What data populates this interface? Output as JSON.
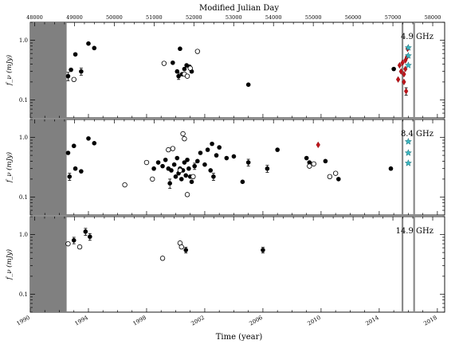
{
  "chart_data": {
    "type": "scatter",
    "top_axis": {
      "title": "Modified Julian Day",
      "range": [
        47890,
        58300
      ],
      "ticks": [
        "48000",
        "49000",
        "50000",
        "51000",
        "52000",
        "53000",
        "54000",
        "55000",
        "56000",
        "57000",
        "58000"
      ]
    },
    "bottom_axis": {
      "title": "Time (year)",
      "range": [
        1990,
        2018.5
      ],
      "ticks": [
        "1990",
        "1994",
        "1998",
        "2002",
        "2006",
        "2010",
        "2014",
        "2018"
      ]
    },
    "ylabel": "f_ν (mJy)",
    "yscale": "log",
    "ylim": [
      0.05,
      2.0
    ],
    "ytick_labels": [
      "1.0",
      "0.1"
    ],
    "shaded_region": [
      1990,
      1992.5
    ],
    "vertical_lines": [
      2015.6,
      2016.4
    ],
    "panels": [
      {
        "label": "4.9 GHz",
        "filled": [
          {
            "x": 1992.6,
            "y": 0.25,
            "err": 0.04
          },
          {
            "x": 1992.8,
            "y": 0.32
          },
          {
            "x": 1993.1,
            "y": 0.58
          },
          {
            "x": 1993.5,
            "y": 0.3,
            "err": 0.04
          },
          {
            "x": 1994.0,
            "y": 0.88
          },
          {
            "x": 1994.4,
            "y": 0.74
          },
          {
            "x": 1999.8,
            "y": 0.42
          },
          {
            "x": 2000.3,
            "y": 0.72
          },
          {
            "x": 2000.1,
            "y": 0.3
          },
          {
            "x": 2000.2,
            "y": 0.25,
            "err": 0.03
          },
          {
            "x": 2000.45,
            "y": 0.27
          },
          {
            "x": 2000.6,
            "y": 0.33
          },
          {
            "x": 2000.75,
            "y": 0.38
          },
          {
            "x": 2000.95,
            "y": 0.36
          },
          {
            "x": 2001.1,
            "y": 0.3
          },
          {
            "x": 2005.0,
            "y": 0.18
          },
          {
            "x": 2015.0,
            "y": 0.33
          }
        ],
        "open": [
          {
            "x": 1993.0,
            "y": 0.22
          },
          {
            "x": 1999.2,
            "y": 0.41
          },
          {
            "x": 2000.6,
            "y": 0.27
          },
          {
            "x": 2000.8,
            "y": 0.25
          },
          {
            "x": 2001.0,
            "y": 0.34
          },
          {
            "x": 2001.5,
            "y": 0.65
          }
        ],
        "diamond": [
          {
            "x": 2015.3,
            "y": 0.22
          },
          {
            "x": 2015.4,
            "y": 0.38
          },
          {
            "x": 2015.5,
            "y": 0.3
          },
          {
            "x": 2015.6,
            "y": 0.42
          },
          {
            "x": 2015.7,
            "y": 0.2
          },
          {
            "x": 2015.8,
            "y": 0.46
          },
          {
            "x": 2015.85,
            "y": 0.14,
            "err": 0.02
          },
          {
            "x": 2015.9,
            "y": 0.52
          },
          {
            "x": 2015.95,
            "y": 0.72
          },
          {
            "x": 2015.7,
            "y": 0.27
          },
          {
            "x": 2015.8,
            "y": 0.33
          }
        ],
        "star": [
          {
            "x": 2016.0,
            "y": 0.75
          },
          {
            "x": 2016.0,
            "y": 0.55
          },
          {
            "x": 2016.0,
            "y": 0.38
          }
        ]
      },
      {
        "label": "8.4 GHz",
        "filled": [
          {
            "x": 1992.6,
            "y": 0.55
          },
          {
            "x": 1992.7,
            "y": 0.22,
            "err": 0.03
          },
          {
            "x": 1993.0,
            "y": 0.72
          },
          {
            "x": 1993.1,
            "y": 0.3
          },
          {
            "x": 1993.5,
            "y": 0.27
          },
          {
            "x": 1994.0,
            "y": 0.96
          },
          {
            "x": 1994.4,
            "y": 0.8
          },
          {
            "x": 1998.5,
            "y": 0.3
          },
          {
            "x": 1998.8,
            "y": 0.38
          },
          {
            "x": 1999.1,
            "y": 0.33
          },
          {
            "x": 1999.3,
            "y": 0.42
          },
          {
            "x": 1999.5,
            "y": 0.3
          },
          {
            "x": 1999.6,
            "y": 0.17,
            "err": 0.03
          },
          {
            "x": 1999.7,
            "y": 0.28
          },
          {
            "x": 1999.9,
            "y": 0.35
          },
          {
            "x": 2000.0,
            "y": 0.22
          },
          {
            "x": 2000.1,
            "y": 0.45
          },
          {
            "x": 2000.2,
            "y": 0.25
          },
          {
            "x": 2000.3,
            "y": 0.3
          },
          {
            "x": 2000.4,
            "y": 0.2
          },
          {
            "x": 2000.5,
            "y": 0.28
          },
          {
            "x": 2000.6,
            "y": 0.38
          },
          {
            "x": 2000.7,
            "y": 0.23
          },
          {
            "x": 2000.8,
            "y": 0.42
          },
          {
            "x": 2000.9,
            "y": 0.3
          },
          {
            "x": 2001.0,
            "y": 0.22
          },
          {
            "x": 2001.1,
            "y": 0.18
          },
          {
            "x": 2001.3,
            "y": 0.33,
            "err": 0.04
          },
          {
            "x": 2001.5,
            "y": 0.4
          },
          {
            "x": 2001.7,
            "y": 0.55
          },
          {
            "x": 2002.0,
            "y": 0.35
          },
          {
            "x": 2002.2,
            "y": 0.62
          },
          {
            "x": 2002.4,
            "y": 0.28
          },
          {
            "x": 2002.5,
            "y": 0.78
          },
          {
            "x": 2002.6,
            "y": 0.22,
            "err": 0.03
          },
          {
            "x": 2002.8,
            "y": 0.5
          },
          {
            "x": 2003.0,
            "y": 0.68
          },
          {
            "x": 2003.5,
            "y": 0.45
          },
          {
            "x": 2004.0,
            "y": 0.48
          },
          {
            "x": 2004.6,
            "y": 0.18
          },
          {
            "x": 2005.0,
            "y": 0.38,
            "err": 0.05
          },
          {
            "x": 2006.3,
            "y": 0.3,
            "err": 0.04
          },
          {
            "x": 2007.0,
            "y": 0.62
          },
          {
            "x": 2009.0,
            "y": 0.45
          },
          {
            "x": 2009.2,
            "y": 0.38
          },
          {
            "x": 2010.3,
            "y": 0.4
          },
          {
            "x": 2011.2,
            "y": 0.2
          },
          {
            "x": 2014.8,
            "y": 0.3
          }
        ],
        "open": [
          {
            "x": 1996.5,
            "y": 0.16
          },
          {
            "x": 1998.0,
            "y": 0.38
          },
          {
            "x": 1998.4,
            "y": 0.2
          },
          {
            "x": 1999.5,
            "y": 0.62
          },
          {
            "x": 1999.8,
            "y": 0.65
          },
          {
            "x": 2000.3,
            "y": 0.28
          },
          {
            "x": 2000.5,
            "y": 1.15
          },
          {
            "x": 2000.6,
            "y": 0.95
          },
          {
            "x": 2000.8,
            "y": 0.11
          },
          {
            "x": 2001.2,
            "y": 0.22
          },
          {
            "x": 2009.2,
            "y": 0.33
          },
          {
            "x": 2009.5,
            "y": 0.36
          },
          {
            "x": 2010.6,
            "y": 0.22
          },
          {
            "x": 2011.0,
            "y": 0.25
          }
        ],
        "diamond": [
          {
            "x": 2009.8,
            "y": 0.75
          }
        ],
        "star": [
          {
            "x": 2016.0,
            "y": 0.85
          },
          {
            "x": 2016.0,
            "y": 0.55
          },
          {
            "x": 2016.0,
            "y": 0.37
          }
        ]
      },
      {
        "label": "14.9 GHz",
        "filled": [
          {
            "x": 1993.0,
            "y": 0.8,
            "err": 0.1
          },
          {
            "x": 1993.8,
            "y": 1.12,
            "err": 0.15
          },
          {
            "x": 1994.1,
            "y": 0.92,
            "err": 0.12
          },
          {
            "x": 2000.7,
            "y": 0.55,
            "err": 0.06
          },
          {
            "x": 2006.0,
            "y": 0.55,
            "err": 0.06
          }
        ],
        "open": [
          {
            "x": 1992.6,
            "y": 0.7
          },
          {
            "x": 1993.4,
            "y": 0.62
          },
          {
            "x": 1999.1,
            "y": 0.4
          },
          {
            "x": 2000.3,
            "y": 0.72
          },
          {
            "x": 2000.4,
            "y": 0.62
          }
        ],
        "diamond": [],
        "star": []
      }
    ]
  }
}
